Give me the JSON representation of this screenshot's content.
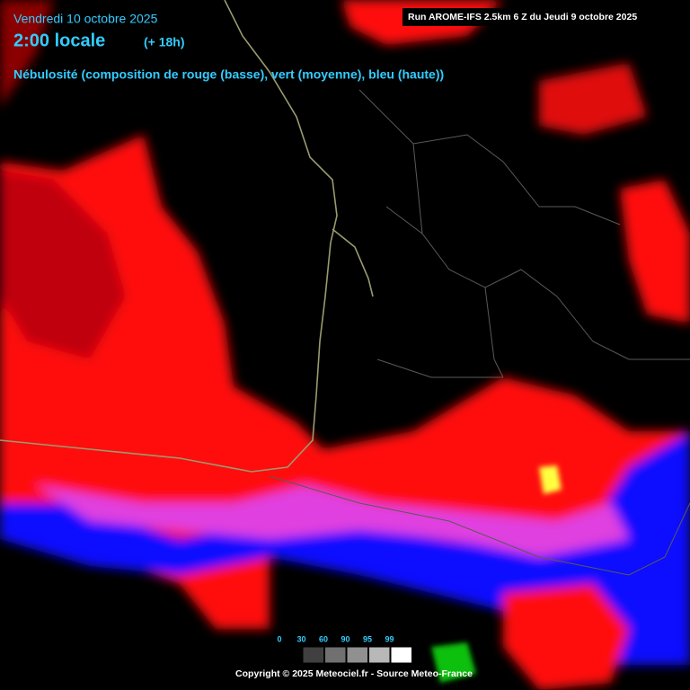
{
  "header": {
    "date": "Vendredi 10 octobre 2025",
    "time": "2:00 locale",
    "offset": "(+ 18h)",
    "description": "Nébulosité (composition de rouge (basse), vert (moyenne), bleu (haute))"
  },
  "run": "Run AROME-IFS 2.5km 6 Z du Jeudi 9 octobre 2025",
  "legend": {
    "values": [
      0,
      30,
      60,
      90,
      95,
      99
    ]
  },
  "footer": "Copyright © 2025 Meteociel.fr - Source Meteo-France"
}
